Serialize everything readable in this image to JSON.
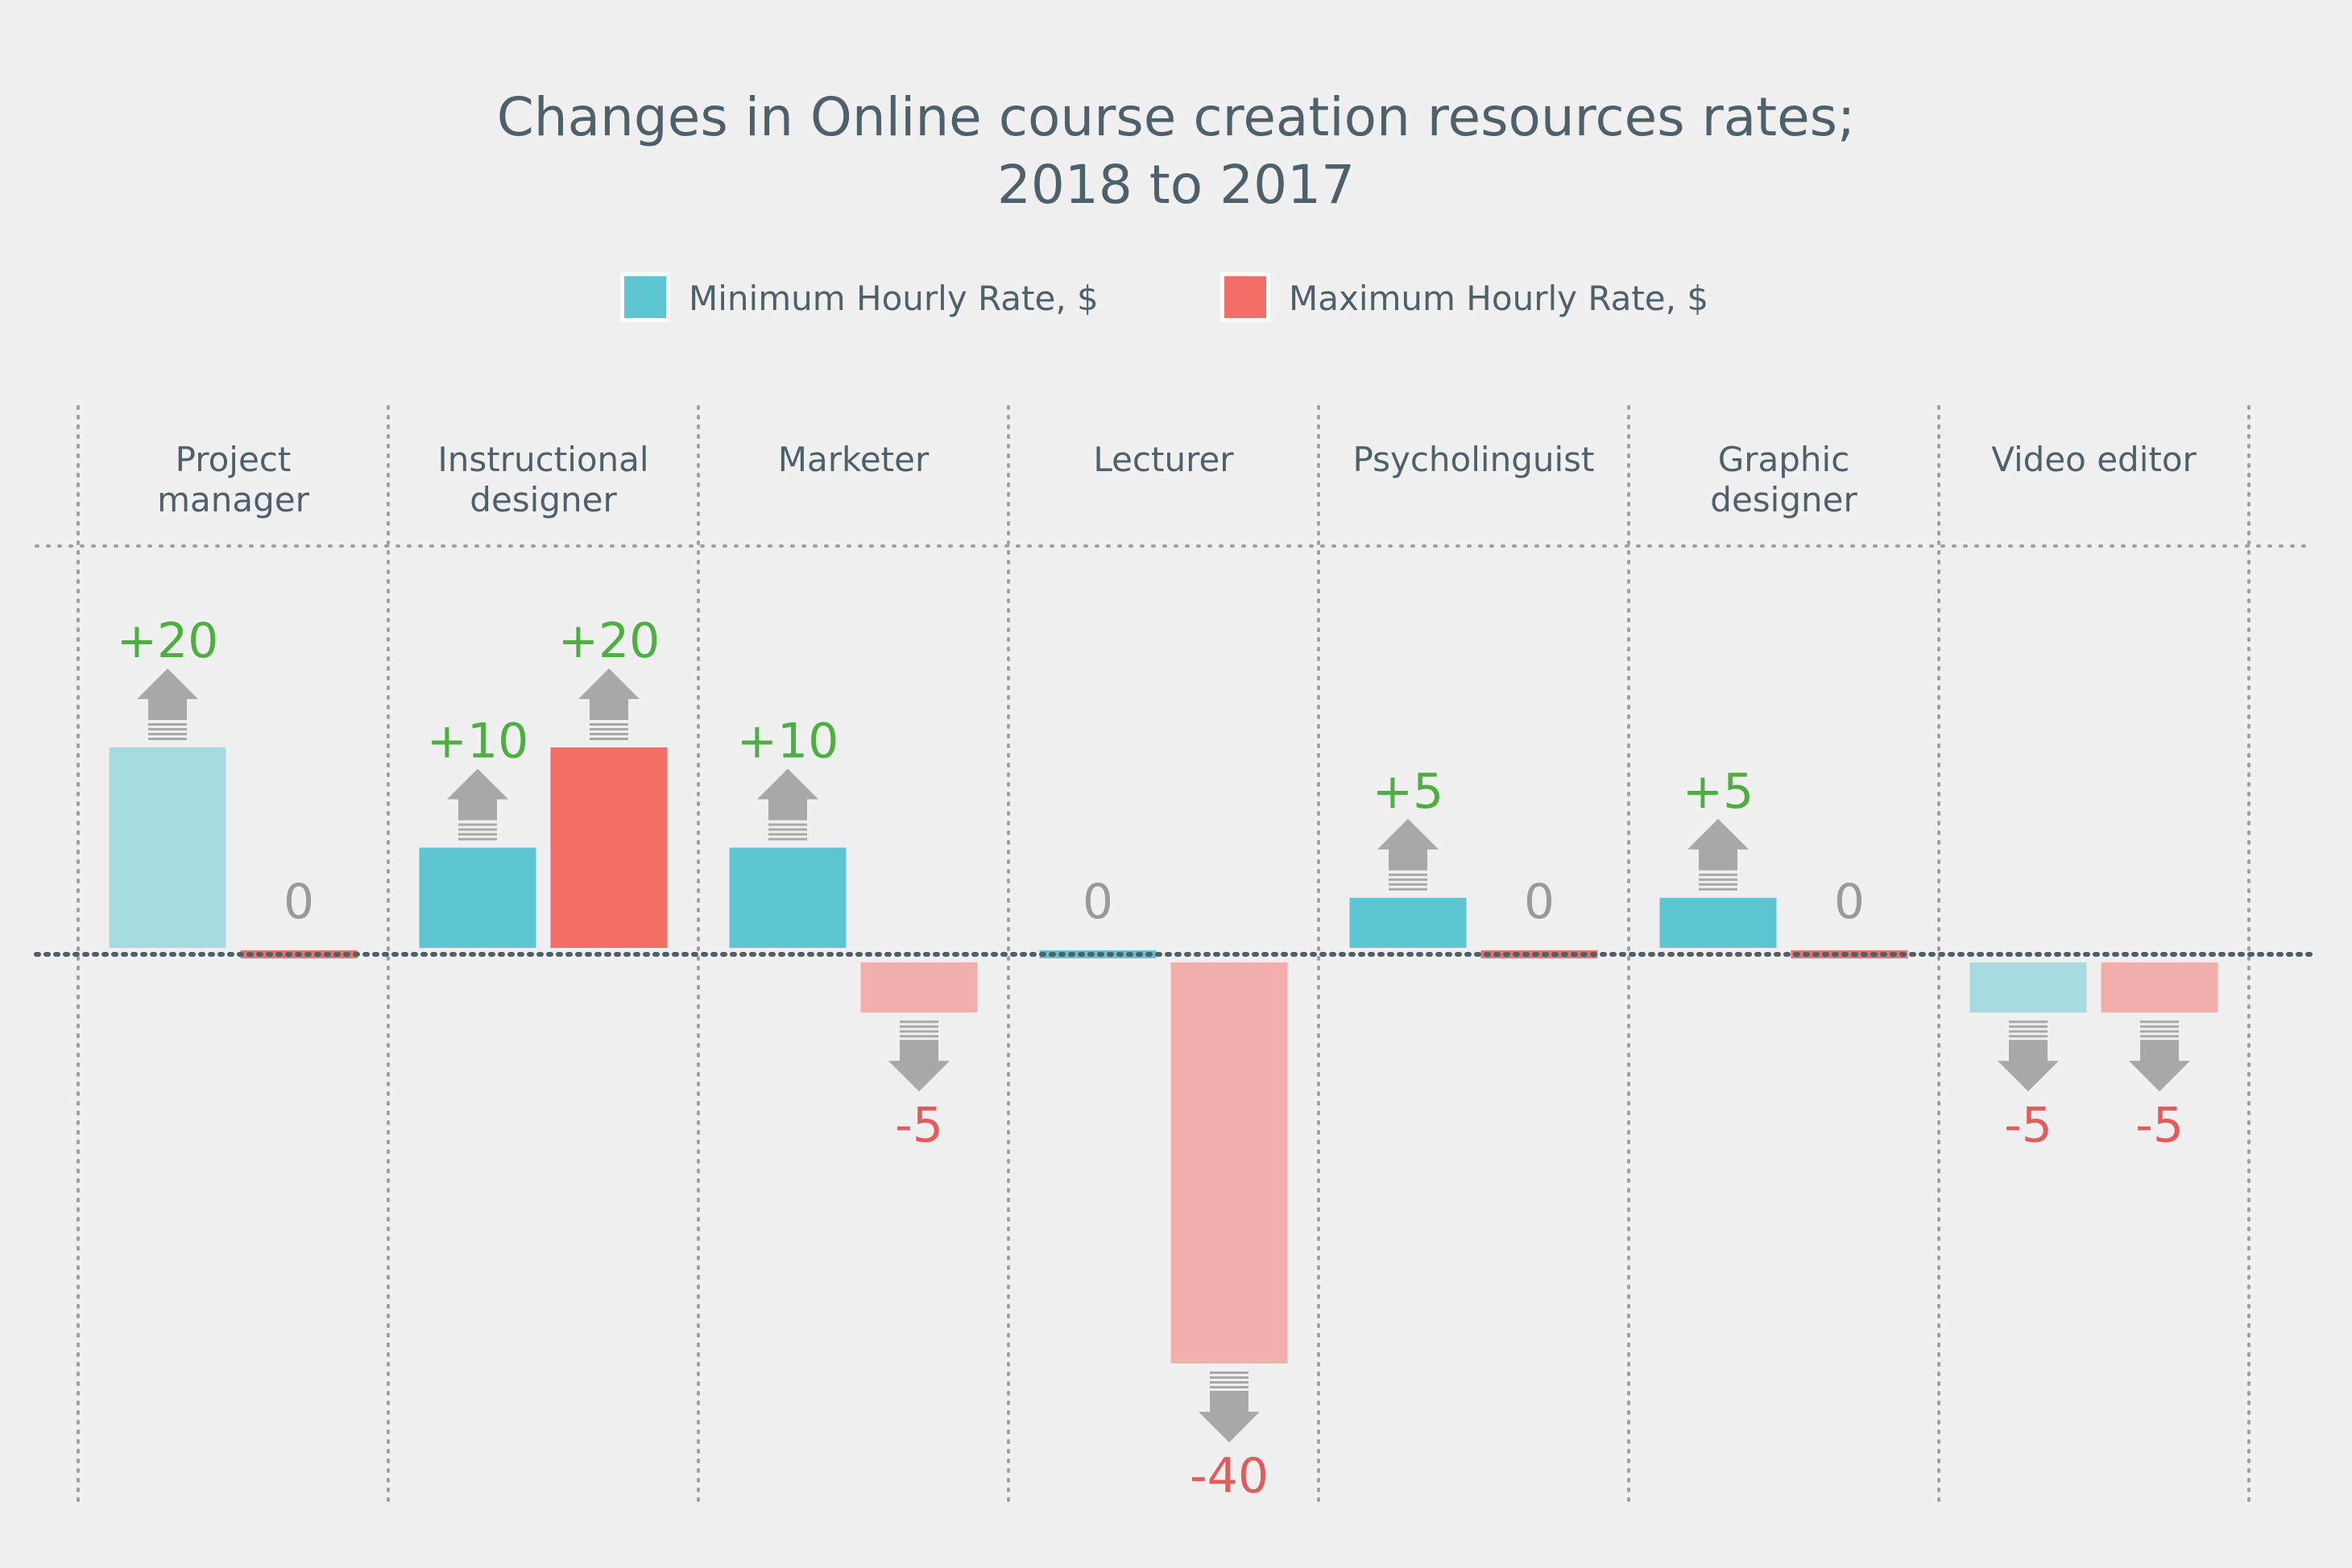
{
  "colors": {
    "background": "#f0f0f0",
    "text": "#4e616b",
    "min_rate": "#5ec6d3",
    "min_rate_light": "#a6dbe2",
    "max_rate": "#f26e66",
    "max_rate_light": "#f2aeaa",
    "positive": "#4caf3f",
    "negative": "#e35b5b",
    "zero": "#9a9a9a",
    "arrow": "#a8a8a8",
    "grid": "#a0a0a0"
  },
  "chart_data": {
    "type": "bar",
    "title": [
      "Changes in Online course creation resources rates;",
      "2018 to 2017"
    ],
    "legend_position": "top-center",
    "grid": true,
    "ylim": [
      -40,
      20
    ],
    "categories": [
      [
        "Project",
        "manager"
      ],
      [
        "Instructional",
        "designer"
      ],
      [
        "Marketer"
      ],
      [
        "Lecturer"
      ],
      [
        "Psycholinguist"
      ],
      [
        "Graphic",
        "designer"
      ],
      [
        "Video editor"
      ]
    ],
    "series": [
      {
        "name": "Minimum Hourly Rate, $",
        "values": [
          20,
          10,
          10,
          0,
          5,
          5,
          -5
        ],
        "labels": [
          "+20",
          "+10",
          "+10",
          "0",
          "+5",
          "+5",
          "-5"
        ],
        "highlight": [
          false,
          true,
          true,
          true,
          true,
          true,
          false
        ]
      },
      {
        "name": "Maximum Hourly Rate, $",
        "values": [
          0,
          20,
          -5,
          -40,
          0,
          0,
          -5
        ],
        "labels": [
          "0",
          "+20",
          "-5",
          "-40",
          "0",
          "0",
          "-5"
        ],
        "highlight": [
          true,
          true,
          false,
          false,
          true,
          true,
          false
        ]
      }
    ]
  }
}
